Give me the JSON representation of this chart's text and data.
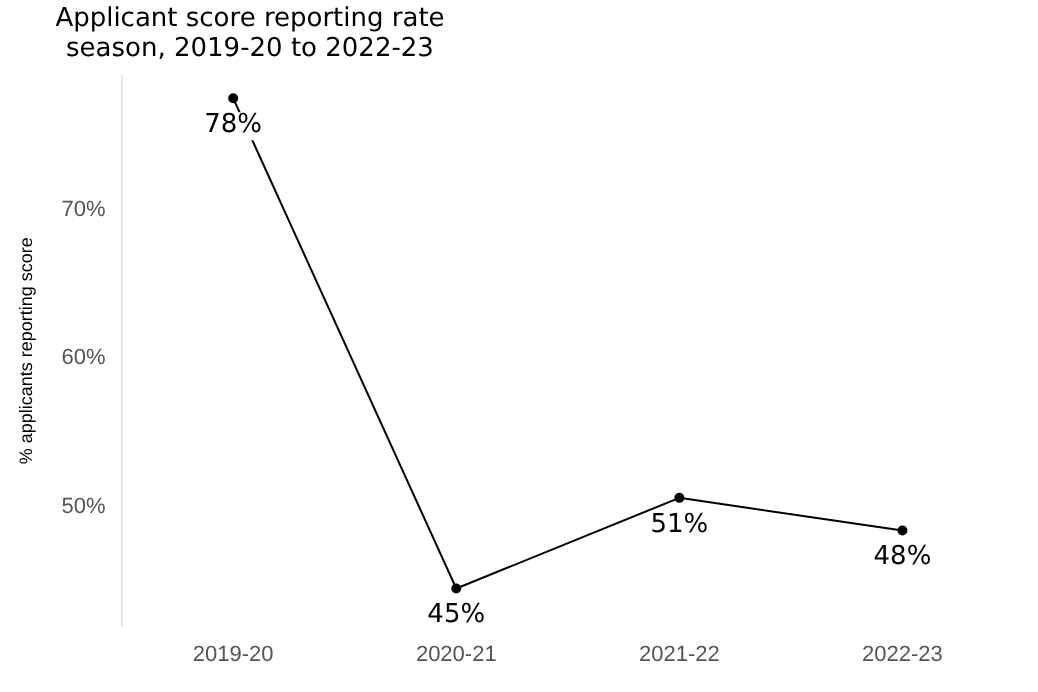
{
  "chart_data": {
    "type": "line",
    "title": "Applicant score reporting rate",
    "subtitle": "season, 2019-20 to 2022-23",
    "ylabel": "% applicants reporting score",
    "categories": [
      "2019-20",
      "2020-21",
      "2021-22",
      "2022-23"
    ],
    "series": [
      {
        "color": "#000000",
        "values": [
          77.5,
          44.5,
          50.6,
          48.4
        ],
        "value_labels": [
          "78%",
          "45%",
          "51%",
          "48%"
        ]
      }
    ],
    "ylim": [
      42,
      79
    ],
    "yticks": [
      {
        "value": 50,
        "label": "50%"
      },
      {
        "value": 60,
        "label": "60%"
      },
      {
        "value": 70,
        "label": "70%"
      }
    ],
    "grid": false,
    "legend": false,
    "marker": "circle",
    "line_style": "solid"
  }
}
